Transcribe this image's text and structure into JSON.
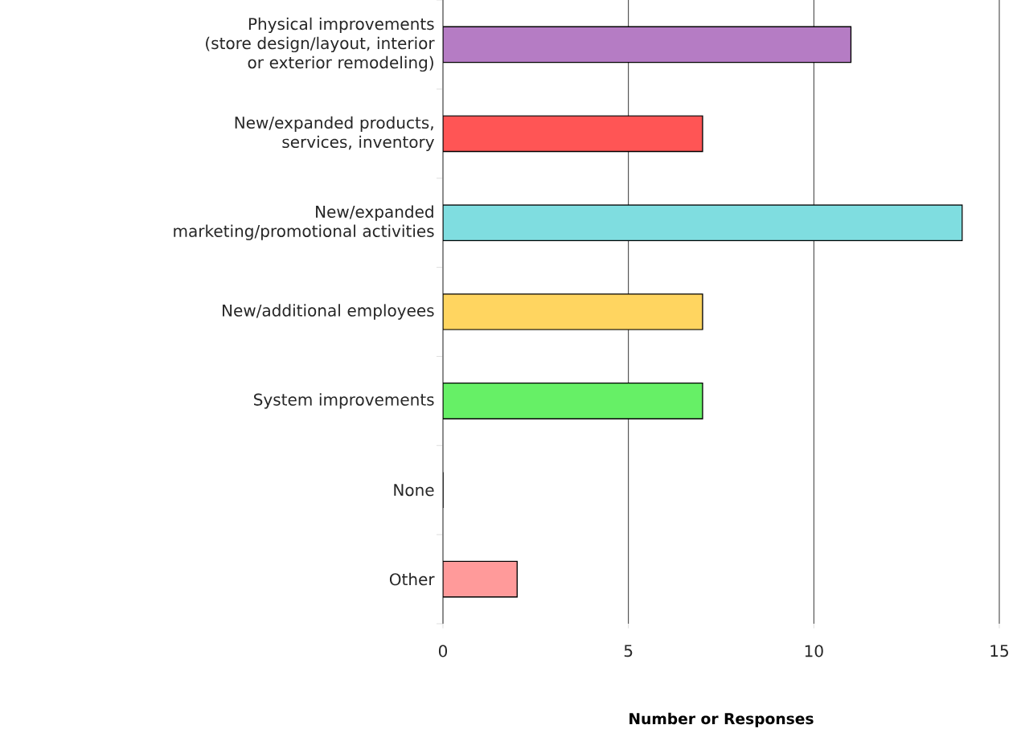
{
  "chart_data": {
    "type": "bar",
    "orientation": "horizontal",
    "xlabel": "Number or Responses",
    "categories": [
      "Physical improvements (store design/layout, interior or exterior remodeling)",
      "New/expanded products, services, inventory",
      "New/expanded marketing/promotional activities",
      "New/additional employees",
      "System improvements",
      "None",
      "Other"
    ],
    "values": [
      11,
      7,
      14,
      7,
      7,
      0,
      2
    ],
    "colors": [
      "#b57cc4",
      "#ff5555",
      "#7fdde0",
      "#ffd560",
      "#66f066",
      "#ffffff",
      "#ff9a9a"
    ],
    "xlim": [
      0,
      15
    ],
    "xticks": [
      0,
      5,
      10,
      15
    ],
    "grid": "x"
  }
}
